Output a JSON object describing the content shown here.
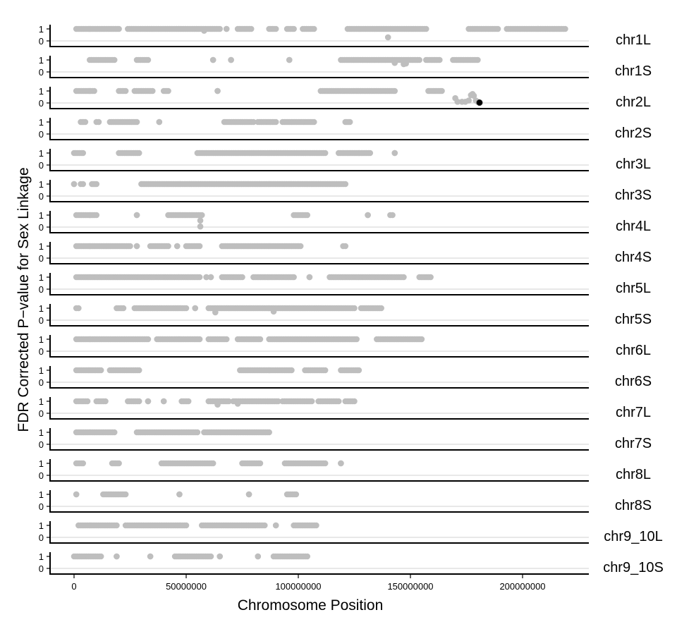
{
  "chart_data": {
    "type": "scatter",
    "layout": "faceted-rows",
    "xlabel": "Chromosome Position",
    "ylabel": "FDR Corrected P−value for Sex Linkage",
    "xlim": [
      -10000000,
      230000000
    ],
    "ylim": [
      0,
      1
    ],
    "x_ticks": [
      0,
      50000000,
      100000000,
      150000000,
      200000000
    ],
    "x_tick_labels": [
      "0",
      "50000000",
      "100000000",
      "150000000",
      "200000000"
    ],
    "y_ticks": [
      1,
      0
    ],
    "y_tick_labels": [
      "1",
      "0"
    ],
    "reference_line": 0,
    "grid": false,
    "strip_position": "right",
    "colors": {
      "point": "#bebebe",
      "highlight": "#000000",
      "reference_line": "#d0d0d0",
      "axis": "#000000"
    },
    "run_value": 1,
    "panels": [
      {
        "name": "chr1L",
        "runs": [
          [
            1000000,
            20000000
          ],
          [
            24000000,
            65000000
          ],
          [
            68000000,
            68000000
          ],
          [
            73000000,
            79000000
          ],
          [
            87000000,
            90000000
          ],
          [
            95000000,
            98000000
          ],
          [
            102000000,
            107000000
          ],
          [
            122000000,
            157000000
          ],
          [
            176000000,
            189000000
          ],
          [
            193000000,
            219000000
          ]
        ],
        "points": [
          [
            58000000,
            0.85
          ],
          [
            140000000,
            0.3
          ]
        ],
        "highlight": []
      },
      {
        "name": "chr1S",
        "runs": [
          [
            7000000,
            18000000
          ],
          [
            28000000,
            33000000
          ],
          [
            62000000,
            62000000
          ],
          [
            70000000,
            70000000
          ],
          [
            96000000,
            96000000
          ],
          [
            119000000,
            154000000
          ],
          [
            157000000,
            163000000
          ],
          [
            169000000,
            180000000
          ]
        ],
        "points": [
          [
            143000000,
            0.75
          ],
          [
            147000000,
            0.65
          ],
          [
            148000000,
            0.7
          ]
        ],
        "highlight": []
      },
      {
        "name": "chr2L",
        "runs": [
          [
            1000000,
            9000000
          ],
          [
            20000000,
            23000000
          ],
          [
            27000000,
            35000000
          ],
          [
            40000000,
            42000000
          ],
          [
            64000000,
            64000000
          ],
          [
            110000000,
            143000000
          ],
          [
            158000000,
            164000000
          ]
        ],
        "points": [
          [
            170000000,
            0.4
          ],
          [
            171000000,
            0.1
          ],
          [
            173000000,
            0.1
          ],
          [
            174500000,
            0.1
          ],
          [
            176000000,
            0.2
          ],
          [
            177000000,
            0.65
          ],
          [
            177700000,
            0.75
          ],
          [
            178300000,
            0.6
          ],
          [
            179200000,
            0.2
          ],
          [
            180000000,
            0.1
          ]
        ],
        "highlight": [
          [
            180800000,
            0.03
          ]
        ]
      },
      {
        "name": "chr2S",
        "runs": [
          [
            3000000,
            5000000
          ],
          [
            10000000,
            11000000
          ],
          [
            16000000,
            28000000
          ],
          [
            38000000,
            38000000
          ],
          [
            67000000,
            80000000
          ],
          [
            82000000,
            90000000
          ],
          [
            93000000,
            107000000
          ],
          [
            121000000,
            123000000
          ]
        ],
        "points": [],
        "highlight": []
      },
      {
        "name": "chr3L",
        "runs": [
          [
            0,
            4000000
          ],
          [
            20000000,
            29000000
          ],
          [
            55000000,
            112000000
          ],
          [
            118000000,
            132000000
          ],
          [
            143000000,
            143000000
          ]
        ],
        "points": [],
        "highlight": []
      },
      {
        "name": "chr3S",
        "runs": [
          [
            0,
            0
          ],
          [
            3000000,
            4000000
          ],
          [
            8000000,
            10000000
          ],
          [
            30000000,
            121000000
          ]
        ],
        "points": [],
        "highlight": []
      },
      {
        "name": "chr4L",
        "runs": [
          [
            1000000,
            10000000
          ],
          [
            28000000,
            28000000
          ],
          [
            42000000,
            57000000
          ],
          [
            98000000,
            104000000
          ],
          [
            131000000,
            131000000
          ],
          [
            141000000,
            142000000
          ]
        ],
        "points": [
          [
            56300000,
            0.55
          ],
          [
            56300000,
            0.05
          ]
        ],
        "highlight": []
      },
      {
        "name": "chr4S",
        "runs": [
          [
            1000000,
            25000000
          ],
          [
            28000000,
            28000000
          ],
          [
            34000000,
            42000000
          ],
          [
            46000000,
            46000000
          ],
          [
            50000000,
            56000000
          ],
          [
            66000000,
            101000000
          ],
          [
            120000000,
            121000000
          ]
        ],
        "points": [],
        "highlight": []
      },
      {
        "name": "chr5L",
        "runs": [
          [
            1000000,
            56000000
          ],
          [
            59000000,
            59000000
          ],
          [
            61000000,
            61000000
          ],
          [
            66000000,
            75000000
          ],
          [
            80000000,
            98000000
          ],
          [
            105000000,
            105000000
          ],
          [
            114000000,
            147000000
          ],
          [
            154000000,
            159000000
          ]
        ],
        "points": [],
        "highlight": []
      },
      {
        "name": "chr5S",
        "runs": [
          [
            1000000,
            2000000
          ],
          [
            19000000,
            22000000
          ],
          [
            27000000,
            50000000
          ],
          [
            54000000,
            54000000
          ],
          [
            60000000,
            125000000
          ],
          [
            128000000,
            137000000
          ]
        ],
        "points": [
          [
            63000000,
            0.65
          ],
          [
            89000000,
            0.72
          ]
        ],
        "highlight": []
      },
      {
        "name": "chr6L",
        "runs": [
          [
            1000000,
            33000000
          ],
          [
            37000000,
            56000000
          ],
          [
            60000000,
            68000000
          ],
          [
            73000000,
            83000000
          ],
          [
            87000000,
            126000000
          ],
          [
            135000000,
            155000000
          ]
        ],
        "points": [],
        "highlight": []
      },
      {
        "name": "chr6S",
        "runs": [
          [
            1000000,
            12000000
          ],
          [
            16000000,
            29000000
          ],
          [
            74000000,
            97000000
          ],
          [
            103000000,
            112000000
          ],
          [
            119000000,
            127000000
          ]
        ],
        "points": [],
        "highlight": []
      },
      {
        "name": "chr7L",
        "runs": [
          [
            1000000,
            6000000
          ],
          [
            10000000,
            14000000
          ],
          [
            24000000,
            29000000
          ],
          [
            33000000,
            33000000
          ],
          [
            40000000,
            40000000
          ],
          [
            48000000,
            51000000
          ],
          [
            60000000,
            69000000
          ],
          [
            71000000,
            91000000
          ],
          [
            93000000,
            106000000
          ],
          [
            109000000,
            118000000
          ],
          [
            121000000,
            125000000
          ]
        ],
        "points": [
          [
            64000000,
            0.72
          ],
          [
            73000000,
            0.8
          ]
        ],
        "highlight": []
      },
      {
        "name": "chr7S",
        "runs": [
          [
            1000000,
            18000000
          ],
          [
            28000000,
            55000000
          ],
          [
            58000000,
            87000000
          ]
        ],
        "points": [],
        "highlight": []
      },
      {
        "name": "chr8L",
        "runs": [
          [
            1000000,
            4000000
          ],
          [
            17000000,
            20000000
          ],
          [
            39000000,
            62000000
          ],
          [
            75000000,
            83000000
          ],
          [
            94000000,
            112000000
          ],
          [
            119000000,
            119000000
          ]
        ],
        "points": [],
        "highlight": []
      },
      {
        "name": "chr8S",
        "runs": [
          [
            1000000,
            1000000
          ],
          [
            13000000,
            23000000
          ],
          [
            47000000,
            47000000
          ],
          [
            78000000,
            78000000
          ],
          [
            95000000,
            99000000
          ]
        ],
        "points": [],
        "highlight": []
      },
      {
        "name": "chr9_10L",
        "runs": [
          [
            2000000,
            19000000
          ],
          [
            23000000,
            50000000
          ],
          [
            57000000,
            85000000
          ],
          [
            90000000,
            90000000
          ],
          [
            98000000,
            108000000
          ]
        ],
        "points": [],
        "highlight": []
      },
      {
        "name": "chr9_10S",
        "runs": [
          [
            0,
            12000000
          ],
          [
            19000000,
            19000000
          ],
          [
            34000000,
            34000000
          ],
          [
            45000000,
            61000000
          ],
          [
            65000000,
            65000000
          ],
          [
            82000000,
            82000000
          ],
          [
            89000000,
            104000000
          ]
        ],
        "points": [],
        "highlight": []
      }
    ]
  }
}
